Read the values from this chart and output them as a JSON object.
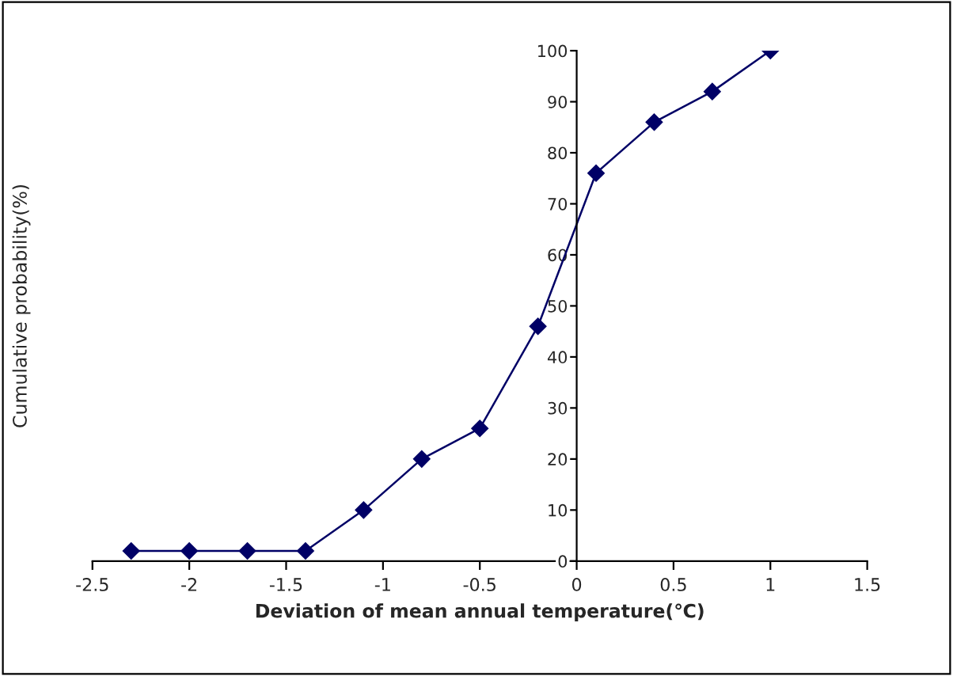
{
  "chart_data": {
    "type": "line",
    "xlabel": "Deviation of mean annual temperature(℃)",
    "ylabel": "Cumulative probability(%)",
    "x": [
      -2.3,
      -2,
      -1.7,
      -1.4,
      -1.1,
      -0.8,
      -0.5,
      -0.2,
      0.1,
      0.4,
      0.7,
      1.0
    ],
    "series": [
      {
        "color": "#000066",
        "values": [
          2,
          2,
          2,
          2,
          10,
          20,
          26,
          46,
          76,
          86,
          92,
          100
        ]
      }
    ],
    "xlim": [
      -2.5,
      1.5
    ],
    "xticks": [
      -2.5,
      -2,
      -1.5,
      -1,
      -0.5,
      0,
      0.5,
      1,
      1.5
    ],
    "ylim": [
      0,
      100
    ],
    "yticks": [
      0,
      10,
      20,
      30,
      40,
      50,
      60,
      70,
      80,
      90,
      100
    ],
    "marker": "diamond",
    "line_style": "solid"
  }
}
